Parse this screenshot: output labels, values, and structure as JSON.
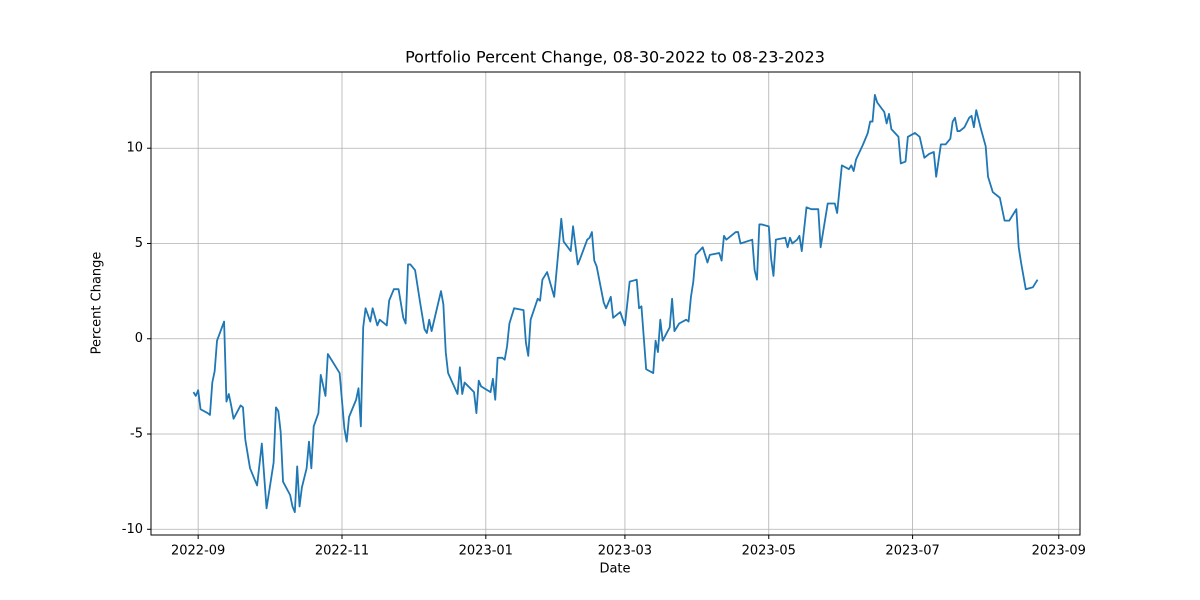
{
  "chart_data": {
    "type": "line",
    "title": "Portfolio Percent Change, 08-30-2022 to 08-23-2023",
    "xlabel": "Date",
    "ylabel": "Percent Change",
    "color": "#1f77b4",
    "grid": true,
    "xlim": [
      "2022-08-12",
      "2023-09-10"
    ],
    "xticks": [
      {
        "value": "2022-09-01",
        "label": "2022-09"
      },
      {
        "value": "2022-11-01",
        "label": "2022-11"
      },
      {
        "value": "2023-01-01",
        "label": "2023-01"
      },
      {
        "value": "2023-03-01",
        "label": "2023-03"
      },
      {
        "value": "2023-05-01",
        "label": "2023-05"
      },
      {
        "value": "2023-07-01",
        "label": "2023-07"
      },
      {
        "value": "2023-09-01",
        "label": "2023-09"
      }
    ],
    "ylim": [
      -10.3,
      14.0
    ],
    "yticks": [
      -10,
      -5,
      0,
      5,
      10
    ],
    "x": [
      "2022-08-30",
      "2022-08-31",
      "2022-09-01",
      "2022-09-02",
      "2022-09-05",
      "2022-09-06",
      "2022-09-07",
      "2022-09-08",
      "2022-09-09",
      "2022-09-12",
      "2022-09-13",
      "2022-09-14",
      "2022-09-15",
      "2022-09-16",
      "2022-09-19",
      "2022-09-20",
      "2022-09-21",
      "2022-09-23",
      "2022-09-26",
      "2022-09-28",
      "2022-09-30",
      "2022-10-03",
      "2022-10-04",
      "2022-10-05",
      "2022-10-06",
      "2022-10-07",
      "2022-10-10",
      "2022-10-11",
      "2022-10-12",
      "2022-10-13",
      "2022-10-14",
      "2022-10-15",
      "2022-10-17",
      "2022-10-18",
      "2022-10-19",
      "2022-10-20",
      "2022-10-22",
      "2022-10-23",
      "2022-10-25",
      "2022-10-26",
      "2022-10-31",
      "2022-11-02",
      "2022-11-03",
      "2022-11-04",
      "2022-11-07",
      "2022-11-08",
      "2022-11-09",
      "2022-11-10",
      "2022-11-11",
      "2022-11-13",
      "2022-11-14",
      "2022-11-16",
      "2022-11-17",
      "2022-11-20",
      "2022-11-21",
      "2022-11-23",
      "2022-11-25",
      "2022-11-27",
      "2022-11-28",
      "2022-11-29",
      "2022-11-30",
      "2022-12-02",
      "2022-12-04",
      "2022-12-06",
      "2022-12-07",
      "2022-12-08",
      "2022-12-09",
      "2022-12-13",
      "2022-12-14",
      "2022-12-15",
      "2022-12-16",
      "2022-12-20",
      "2022-12-21",
      "2022-12-22",
      "2022-12-23",
      "2022-12-27",
      "2022-12-28",
      "2022-12-29",
      "2022-12-30",
      "2023-01-03",
      "2023-01-04",
      "2023-01-05",
      "2023-01-06",
      "2023-01-08",
      "2023-01-09",
      "2023-01-10",
      "2023-01-11",
      "2023-01-13",
      "2023-01-17",
      "2023-01-18",
      "2023-01-19",
      "2023-01-20",
      "2023-01-23",
      "2023-01-24",
      "2023-01-25",
      "2023-01-27",
      "2023-01-30",
      "2023-02-01",
      "2023-02-02",
      "2023-02-03",
      "2023-02-06",
      "2023-02-07",
      "2023-02-09",
      "2023-02-10",
      "2023-02-13",
      "2023-02-14",
      "2023-02-15",
      "2023-02-16",
      "2023-02-17",
      "2023-02-20",
      "2023-02-21",
      "2023-02-23",
      "2023-02-24",
      "2023-02-27",
      "2023-03-01",
      "2023-03-03",
      "2023-03-06",
      "2023-03-07",
      "2023-03-08",
      "2023-03-10",
      "2023-03-13",
      "2023-03-14",
      "2023-03-15",
      "2023-03-16",
      "2023-03-17",
      "2023-03-20",
      "2023-03-21",
      "2023-03-22",
      "2023-03-24",
      "2023-03-27",
      "2023-03-28",
      "2023-03-29",
      "2023-03-30",
      "2023-03-31",
      "2023-04-03",
      "2023-04-05",
      "2023-04-06",
      "2023-04-10",
      "2023-04-11",
      "2023-04-12",
      "2023-04-13",
      "2023-04-17",
      "2023-04-18",
      "2023-04-19",
      "2023-04-24",
      "2023-04-25",
      "2023-04-26",
      "2023-04-27",
      "2023-04-28",
      "2023-05-01",
      "2023-05-02",
      "2023-05-03",
      "2023-05-04",
      "2023-05-08",
      "2023-05-09",
      "2023-05-10",
      "2023-05-11",
      "2023-05-13",
      "2023-05-14",
      "2023-05-15",
      "2023-05-17",
      "2023-05-19",
      "2023-05-22",
      "2023-05-23",
      "2023-05-26",
      "2023-05-29",
      "2023-05-30",
      "2023-06-01",
      "2023-06-04",
      "2023-06-05",
      "2023-06-06",
      "2023-06-07",
      "2023-06-10",
      "2023-06-12",
      "2023-06-13",
      "2023-06-14",
      "2023-06-15",
      "2023-06-16",
      "2023-06-19",
      "2023-06-20",
      "2023-06-21",
      "2023-06-22",
      "2023-06-25",
      "2023-06-26",
      "2023-06-28",
      "2023-06-29",
      "2023-07-02",
      "2023-07-04",
      "2023-07-06",
      "2023-07-08",
      "2023-07-10",
      "2023-07-11",
      "2023-07-13",
      "2023-07-15",
      "2023-07-17",
      "2023-07-18",
      "2023-07-19",
      "2023-07-20",
      "2023-07-21",
      "2023-07-23",
      "2023-07-25",
      "2023-07-26",
      "2023-07-27",
      "2023-07-28",
      "2023-07-30",
      "2023-08-01",
      "2023-08-02",
      "2023-08-04",
      "2023-08-07",
      "2023-08-09",
      "2023-08-11",
      "2023-08-14",
      "2023-08-15",
      "2023-08-16",
      "2023-08-18",
      "2023-08-21",
      "2023-08-23"
    ],
    "values": [
      -2.8,
      -3.0,
      -2.7,
      -3.7,
      -3.9,
      -4.0,
      -2.3,
      -1.7,
      -0.1,
      0.9,
      -3.3,
      -2.9,
      -3.5,
      -4.2,
      -3.5,
      -3.6,
      -5.3,
      -6.8,
      -7.7,
      -5.5,
      -8.9,
      -6.5,
      -3.6,
      -3.8,
      -4.9,
      -7.5,
      -8.2,
      -8.8,
      -9.1,
      -6.7,
      -8.8,
      -7.8,
      -6.8,
      -5.4,
      -6.8,
      -4.6,
      -3.9,
      -1.9,
      -3.0,
      -0.8,
      -1.8,
      -4.7,
      -5.4,
      -4.1,
      -3.2,
      -2.6,
      -4.6,
      0.6,
      1.6,
      0.9,
      1.6,
      0.7,
      1.0,
      0.7,
      2.0,
      2.6,
      2.6,
      1.1,
      0.8,
      3.9,
      3.9,
      3.6,
      2.0,
      0.5,
      0.3,
      1.0,
      0.4,
      2.5,
      1.8,
      -0.7,
      -1.8,
      -2.9,
      -1.5,
      -2.9,
      -2.3,
      -2.8,
      -3.9,
      -2.2,
      -2.5,
      -2.8,
      -2.1,
      -3.2,
      -1.0,
      -1.0,
      -1.1,
      -0.4,
      0.8,
      1.6,
      1.5,
      -0.2,
      -0.9,
      1.0,
      2.1,
      2.0,
      3.1,
      3.5,
      2.2,
      4.9,
      6.3,
      5.1,
      4.6,
      5.9,
      3.9,
      4.2,
      5.2,
      5.3,
      5.6,
      4.1,
      3.8,
      1.9,
      1.6,
      2.2,
      1.1,
      1.4,
      0.7,
      3.0,
      3.1,
      1.6,
      1.7,
      -1.6,
      -1.8,
      -0.1,
      -0.7,
      1.0,
      -0.1,
      0.6,
      2.1,
      0.4,
      0.8,
      1.0,
      0.9,
      2.2,
      3.0,
      4.4,
      4.8,
      4.0,
      4.4,
      4.5,
      4.1,
      5.4,
      5.2,
      5.6,
      5.6,
      5.0,
      5.2,
      3.6,
      3.1,
      6.0,
      6.0,
      5.9,
      4.2,
      3.3,
      5.2,
      5.3,
      4.8,
      5.3,
      5.0,
      5.2,
      5.4,
      4.6,
      6.9,
      6.8,
      6.8,
      4.8,
      7.1,
      7.1,
      6.6,
      9.1,
      8.9,
      9.1,
      8.8,
      9.4,
      10.2,
      10.8,
      11.4,
      11.4,
      12.8,
      12.4,
      11.9,
      11.3,
      11.8,
      11.0,
      10.6,
      9.2,
      9.3,
      10.6,
      10.8,
      10.6,
      9.5,
      9.7,
      9.8,
      8.5,
      10.2,
      10.2,
      10.5,
      11.4,
      11.6,
      10.9,
      10.9,
      11.1,
      11.6,
      11.7,
      11.1,
      12.0,
      11.0,
      10.1,
      8.5,
      7.7,
      7.4,
      6.2,
      6.2,
      6.8,
      4.8,
      4.0,
      2.6,
      2.7,
      3.1
    ]
  }
}
